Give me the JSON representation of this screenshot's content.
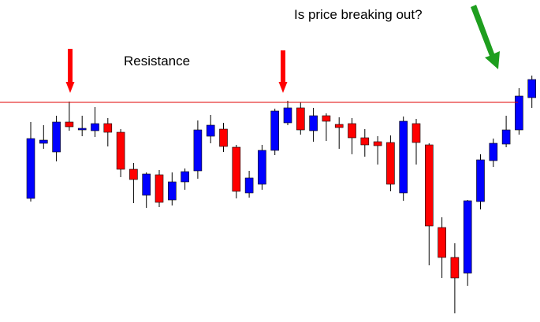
{
  "chart_data": {
    "type": "candlestick",
    "ylim": [
      0,
      409
    ],
    "grid": false,
    "colors": {
      "bullish": "#0000ff",
      "bearish": "#ff0000",
      "wick": "#000000",
      "resistance": "#e00000",
      "arrow_red": "#ff0000",
      "arrow_green": "#1e9e1e"
    },
    "candles": [
      {
        "open": 157,
        "close": 233,
        "high": 254,
        "low": 153
      },
      {
        "open": 227,
        "close": 231,
        "high": 250,
        "low": 220
      },
      {
        "open": 216,
        "close": 254,
        "high": 262,
        "low": 204
      },
      {
        "open": 254,
        "close": 248,
        "high": 280,
        "low": 243
      },
      {
        "open": 244,
        "close": 246,
        "high": 262,
        "low": 236
      },
      {
        "open": 243,
        "close": 252,
        "high": 273,
        "low": 235
      },
      {
        "open": 252,
        "close": 241,
        "high": 259,
        "low": 223
      },
      {
        "open": 241,
        "close": 194,
        "high": 245,
        "low": 184
      },
      {
        "open": 194,
        "close": 181,
        "high": 202,
        "low": 151
      },
      {
        "open": 161,
        "close": 188,
        "high": 190,
        "low": 145
      },
      {
        "open": 187,
        "close": 152,
        "high": 193,
        "low": 146
      },
      {
        "open": 155,
        "close": 178,
        "high": 190,
        "low": 148
      },
      {
        "open": 178,
        "close": 191,
        "high": 195,
        "low": 168
      },
      {
        "open": 192,
        "close": 244,
        "high": 256,
        "low": 182
      },
      {
        "open": 236,
        "close": 250,
        "high": 263,
        "low": 227
      },
      {
        "open": 245,
        "close": 223,
        "high": 253,
        "low": 216
      },
      {
        "open": 222,
        "close": 166,
        "high": 225,
        "low": 157
      },
      {
        "open": 164,
        "close": 183,
        "high": 192,
        "low": 158
      },
      {
        "open": 175,
        "close": 218,
        "high": 225,
        "low": 168
      },
      {
        "open": 218,
        "close": 268,
        "high": 271,
        "low": 212
      },
      {
        "open": 253,
        "close": 272,
        "high": 281,
        "low": 250
      },
      {
        "open": 272,
        "close": 244,
        "high": 279,
        "low": 238
      },
      {
        "open": 243,
        "close": 262,
        "high": 272,
        "low": 229
      },
      {
        "open": 262,
        "close": 255,
        "high": 265,
        "low": 230
      },
      {
        "open": 251,
        "close": 247,
        "high": 260,
        "low": 220
      },
      {
        "open": 252,
        "close": 234,
        "high": 259,
        "low": 213
      },
      {
        "open": 234,
        "close": 225,
        "high": 245,
        "low": 210
      },
      {
        "open": 229,
        "close": 224,
        "high": 236,
        "low": 200
      },
      {
        "open": 228,
        "close": 175,
        "high": 237,
        "low": 166
      },
      {
        "open": 164,
        "close": 255,
        "high": 261,
        "low": 154
      },
      {
        "open": 252,
        "close": 228,
        "high": 258,
        "low": 200
      },
      {
        "open": 225,
        "close": 122,
        "high": 227,
        "low": 72
      },
      {
        "open": 120,
        "close": 82,
        "high": 133,
        "low": 56
      },
      {
        "open": 82,
        "close": 56,
        "high": 100,
        "low": 11
      },
      {
        "open": 62,
        "close": 154,
        "high": 155,
        "low": 46
      },
      {
        "open": 153,
        "close": 206,
        "high": 213,
        "low": 143
      },
      {
        "open": 205,
        "close": 227,
        "high": 233,
        "low": 197
      },
      {
        "open": 226,
        "close": 244,
        "high": 262,
        "low": 222
      },
      {
        "open": 244,
        "close": 287,
        "high": 297,
        "low": 238
      },
      {
        "open": 285,
        "close": 308,
        "high": 313,
        "low": 272
      }
    ],
    "resistance_level": 279,
    "annotations": {
      "resistance_label": "Resistance",
      "question": "Is price breaking out?"
    }
  }
}
